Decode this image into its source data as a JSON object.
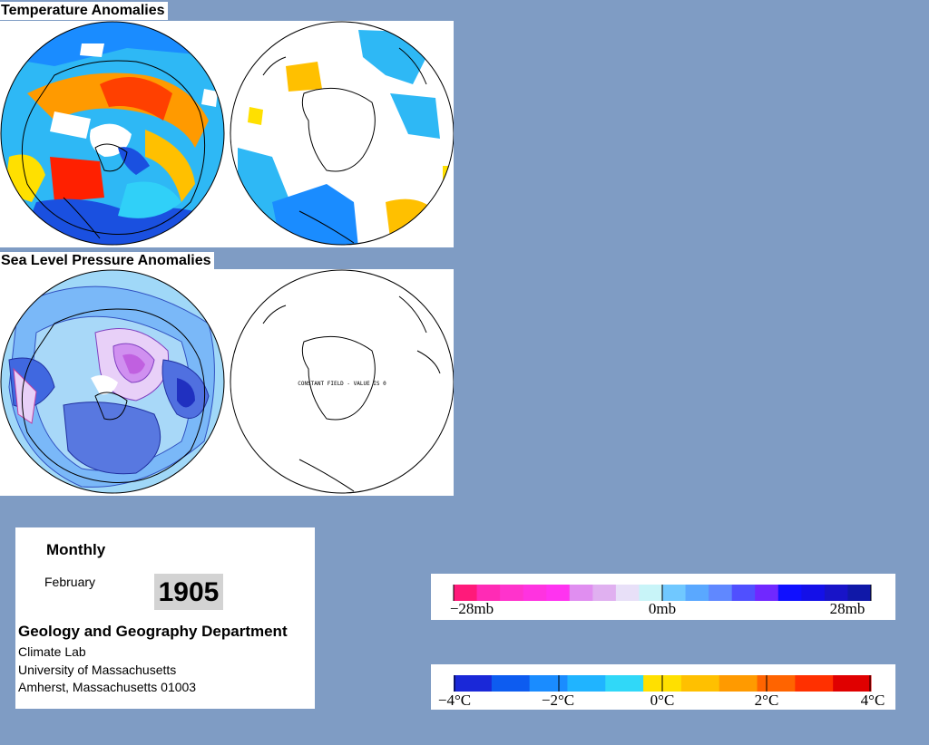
{
  "temperature": {
    "title": "Temperature Anomalies"
  },
  "pressure": {
    "title": "Sea Level Pressure Anomalies",
    "south_label": "CONSTANT FIELD - VALUE IS 0"
  },
  "info": {
    "frequency": "Monthly",
    "month": "February",
    "year": "1905",
    "department": "Geology and Geography Department",
    "lab": "Climate Lab",
    "university": "University of Massachusetts",
    "address": "Amherst, Massachusetts 01003"
  },
  "pressure_scale": {
    "labels": [
      "−28mb",
      "0mb",
      "28mb"
    ],
    "colors": [
      "#ff1a7a",
      "#ff2bb5",
      "#ff33cc",
      "#ff33e0",
      "#ff33f0",
      "#e08ef0",
      "#e0b0f0",
      "#e8e0f8",
      "#c8f4f8",
      "#70c8ff",
      "#5aa8ff",
      "#6088ff",
      "#5050ff",
      "#7028ff",
      "#1010ff",
      "#1410e8",
      "#1814c8",
      "#1018a8"
    ]
  },
  "temperature_scale": {
    "labels": [
      "−4°C",
      "−2°C",
      "0°C",
      "2°C",
      "4°C"
    ],
    "colors": [
      "#1a28d8",
      "#0d5cf0",
      "#1a8cff",
      "#20b4ff",
      "#30d8f8",
      "#ffe000",
      "#ffc000",
      "#ff9a00",
      "#ff6400",
      "#ff3000",
      "#e00000"
    ]
  },
  "colors": {
    "background": "#7f9cc4",
    "warm": "#ff7a00",
    "cold": "#1e50e0",
    "ice": "#ffffff",
    "high_pressure": "#c88ae8",
    "low_pressure": "#4060e0"
  }
}
